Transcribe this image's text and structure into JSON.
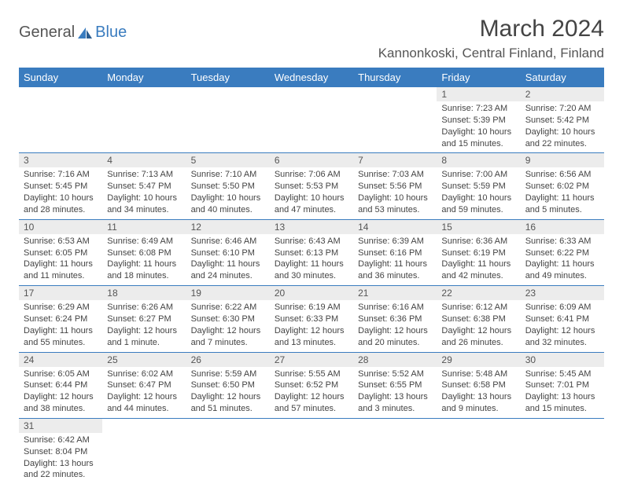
{
  "brand": {
    "part1": "General",
    "part2": "Blue"
  },
  "title": "March 2024",
  "location": "Kannonkoski, Central Finland, Finland",
  "colors": {
    "header_bg": "#3a7cbf",
    "daynum_bg": "#ececec",
    "border": "#3a7cbf",
    "text": "#444444"
  },
  "dayNames": [
    "Sunday",
    "Monday",
    "Tuesday",
    "Wednesday",
    "Thursday",
    "Friday",
    "Saturday"
  ],
  "weeks": [
    [
      null,
      null,
      null,
      null,
      null,
      {
        "n": "1",
        "sr": "7:23 AM",
        "ss": "5:39 PM",
        "dl": "10 hours and 15 minutes."
      },
      {
        "n": "2",
        "sr": "7:20 AM",
        "ss": "5:42 PM",
        "dl": "10 hours and 22 minutes."
      }
    ],
    [
      {
        "n": "3",
        "sr": "7:16 AM",
        "ss": "5:45 PM",
        "dl": "10 hours and 28 minutes."
      },
      {
        "n": "4",
        "sr": "7:13 AM",
        "ss": "5:47 PM",
        "dl": "10 hours and 34 minutes."
      },
      {
        "n": "5",
        "sr": "7:10 AM",
        "ss": "5:50 PM",
        "dl": "10 hours and 40 minutes."
      },
      {
        "n": "6",
        "sr": "7:06 AM",
        "ss": "5:53 PM",
        "dl": "10 hours and 47 minutes."
      },
      {
        "n": "7",
        "sr": "7:03 AM",
        "ss": "5:56 PM",
        "dl": "10 hours and 53 minutes."
      },
      {
        "n": "8",
        "sr": "7:00 AM",
        "ss": "5:59 PM",
        "dl": "10 hours and 59 minutes."
      },
      {
        "n": "9",
        "sr": "6:56 AM",
        "ss": "6:02 PM",
        "dl": "11 hours and 5 minutes."
      }
    ],
    [
      {
        "n": "10",
        "sr": "6:53 AM",
        "ss": "6:05 PM",
        "dl": "11 hours and 11 minutes."
      },
      {
        "n": "11",
        "sr": "6:49 AM",
        "ss": "6:08 PM",
        "dl": "11 hours and 18 minutes."
      },
      {
        "n": "12",
        "sr": "6:46 AM",
        "ss": "6:10 PM",
        "dl": "11 hours and 24 minutes."
      },
      {
        "n": "13",
        "sr": "6:43 AM",
        "ss": "6:13 PM",
        "dl": "11 hours and 30 minutes."
      },
      {
        "n": "14",
        "sr": "6:39 AM",
        "ss": "6:16 PM",
        "dl": "11 hours and 36 minutes."
      },
      {
        "n": "15",
        "sr": "6:36 AM",
        "ss": "6:19 PM",
        "dl": "11 hours and 42 minutes."
      },
      {
        "n": "16",
        "sr": "6:33 AM",
        "ss": "6:22 PM",
        "dl": "11 hours and 49 minutes."
      }
    ],
    [
      {
        "n": "17",
        "sr": "6:29 AM",
        "ss": "6:24 PM",
        "dl": "11 hours and 55 minutes."
      },
      {
        "n": "18",
        "sr": "6:26 AM",
        "ss": "6:27 PM",
        "dl": "12 hours and 1 minute."
      },
      {
        "n": "19",
        "sr": "6:22 AM",
        "ss": "6:30 PM",
        "dl": "12 hours and 7 minutes."
      },
      {
        "n": "20",
        "sr": "6:19 AM",
        "ss": "6:33 PM",
        "dl": "12 hours and 13 minutes."
      },
      {
        "n": "21",
        "sr": "6:16 AM",
        "ss": "6:36 PM",
        "dl": "12 hours and 20 minutes."
      },
      {
        "n": "22",
        "sr": "6:12 AM",
        "ss": "6:38 PM",
        "dl": "12 hours and 26 minutes."
      },
      {
        "n": "23",
        "sr": "6:09 AM",
        "ss": "6:41 PM",
        "dl": "12 hours and 32 minutes."
      }
    ],
    [
      {
        "n": "24",
        "sr": "6:05 AM",
        "ss": "6:44 PM",
        "dl": "12 hours and 38 minutes."
      },
      {
        "n": "25",
        "sr": "6:02 AM",
        "ss": "6:47 PM",
        "dl": "12 hours and 44 minutes."
      },
      {
        "n": "26",
        "sr": "5:59 AM",
        "ss": "6:50 PM",
        "dl": "12 hours and 51 minutes."
      },
      {
        "n": "27",
        "sr": "5:55 AM",
        "ss": "6:52 PM",
        "dl": "12 hours and 57 minutes."
      },
      {
        "n": "28",
        "sr": "5:52 AM",
        "ss": "6:55 PM",
        "dl": "13 hours and 3 minutes."
      },
      {
        "n": "29",
        "sr": "5:48 AM",
        "ss": "6:58 PM",
        "dl": "13 hours and 9 minutes."
      },
      {
        "n": "30",
        "sr": "5:45 AM",
        "ss": "7:01 PM",
        "dl": "13 hours and 15 minutes."
      }
    ],
    [
      {
        "n": "31",
        "sr": "6:42 AM",
        "ss": "8:04 PM",
        "dl": "13 hours and 22 minutes."
      },
      null,
      null,
      null,
      null,
      null,
      null
    ]
  ],
  "labels": {
    "sunrise": "Sunrise:",
    "sunset": "Sunset:",
    "daylight": "Daylight:"
  }
}
